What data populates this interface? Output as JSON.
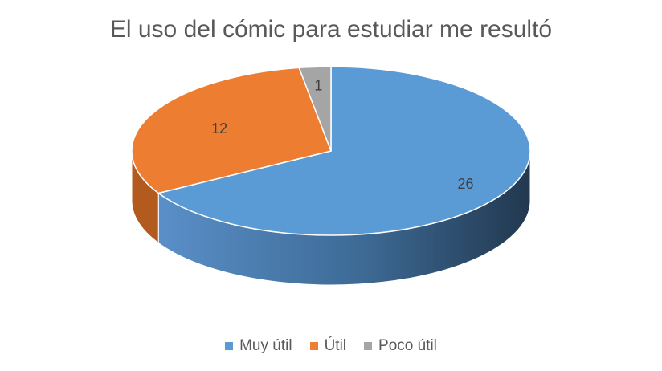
{
  "chart_data": {
    "type": "pie",
    "title": "El uso del cómic para estudiar me resultó",
    "categories": [
      "Muy útil",
      "Útil",
      "Poco útil"
    ],
    "values": [
      26,
      12,
      1
    ],
    "data_labels": [
      "26",
      "12",
      "1"
    ],
    "colors": [
      "#5B9BD5",
      "#ED7D31",
      "#A5A5A5"
    ],
    "side_colors": [
      "#3F6E98",
      "#B35A1E",
      "#7E7E7E"
    ],
    "style": "3d",
    "legend": "bottom"
  }
}
